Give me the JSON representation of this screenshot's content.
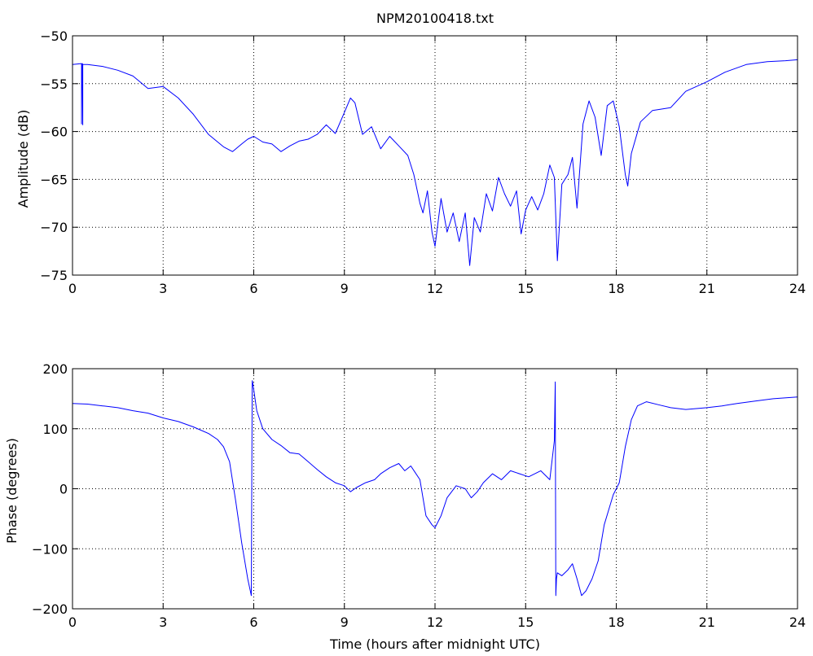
{
  "chart_data": [
    {
      "type": "line",
      "title": "NPM20100418.txt",
      "xlabel": "",
      "ylabel": "Amplitude (dB)",
      "xlim": [
        0,
        24
      ],
      "ylim": [
        -75,
        -50
      ],
      "xticks": [
        0,
        3,
        6,
        9,
        12,
        15,
        18,
        21,
        24
      ],
      "yticks": [
        -75,
        -70,
        -65,
        -60,
        -55,
        -50
      ],
      "xtick_labels": [
        "0",
        "3",
        "6",
        "9",
        "12",
        "15",
        "18",
        "21",
        "24"
      ],
      "ytick_labels": [
        "−75",
        "−70",
        "−65",
        "−60",
        "−55",
        "−50"
      ],
      "grid": true,
      "line_color": "#0000ff",
      "series": [
        {
          "x": [
            0,
            0.3,
            0.3,
            0.31,
            0.33,
            0.34,
            0.34,
            0.36,
            0.5,
            1,
            1.5,
            2,
            2.5,
            3,
            3.5,
            4,
            4.5,
            5,
            5.3,
            5.6,
            5.8,
            6,
            6.3,
            6.6,
            6.9,
            7.2,
            7.5,
            7.8,
            8.1,
            8.4,
            8.7,
            9.0,
            9.2,
            9.35,
            9.6,
            9.9,
            10.2,
            10.5,
            10.8,
            11.1,
            11.3,
            11.5,
            11.6,
            11.75,
            11.9,
            12.0,
            12.2,
            12.4,
            12.6,
            12.8,
            13.0,
            13.15,
            13.3,
            13.5,
            13.7,
            13.9,
            14.1,
            14.3,
            14.5,
            14.7,
            14.85,
            15.0,
            15.2,
            15.4,
            15.6,
            15.8,
            15.95,
            16.05,
            16.2,
            16.4,
            16.55,
            16.7,
            16.9,
            17.1,
            17.3,
            17.5,
            17.7,
            17.9,
            18.1,
            18.3,
            18.38,
            18.5,
            18.8,
            19.2,
            19.8,
            20.3,
            21,
            21.6,
            22.3,
            23,
            23.6,
            24
          ],
          "y": [
            -53,
            -52.9,
            -59.2,
            -53,
            -52.9,
            -59.3,
            -53,
            -53,
            -53,
            -53.2,
            -53.6,
            -54.2,
            -55.5,
            -55.3,
            -56.5,
            -58.2,
            -60.3,
            -61.6,
            -62.1,
            -61.3,
            -60.8,
            -60.5,
            -61.1,
            -61.3,
            -62.1,
            -61.5,
            -61,
            -60.8,
            -60.3,
            -59.3,
            -60.2,
            -58,
            -56.5,
            -57,
            -60.3,
            -59.5,
            -61.8,
            -60.5,
            -61.5,
            -62.5,
            -64.5,
            -67.5,
            -68.5,
            -66.2,
            -70.5,
            -72,
            -67,
            -70.5,
            -68.5,
            -71.5,
            -68.5,
            -74,
            -69,
            -70.5,
            -66.5,
            -68.3,
            -64.8,
            -66.5,
            -67.8,
            -66.2,
            -70.7,
            -68.2,
            -66.8,
            -68.2,
            -66.5,
            -63.5,
            -64.8,
            -73.5,
            -65.5,
            -64.5,
            -62.7,
            -68,
            -59.2,
            -56.8,
            -58.5,
            -62.5,
            -57.3,
            -56.8,
            -59.5,
            -64.5,
            -65.7,
            -62.3,
            -59,
            -57.8,
            -57.5,
            -55.8,
            -54.8,
            -53.8,
            -53,
            -52.7,
            -52.6,
            -52.5
          ]
        }
      ]
    },
    {
      "type": "line",
      "title": "",
      "xlabel": "Time (hours after midnight UTC)",
      "ylabel": "Phase (degrees)",
      "xlim": [
        0,
        24
      ],
      "ylim": [
        -200,
        200
      ],
      "xticks": [
        0,
        3,
        6,
        9,
        12,
        15,
        18,
        21,
        24
      ],
      "yticks": [
        -200,
        -100,
        0,
        100,
        200
      ],
      "xtick_labels": [
        "0",
        "3",
        "6",
        "9",
        "12",
        "15",
        "18",
        "21",
        "24"
      ],
      "ytick_labels": [
        "−200",
        "−100",
        "0",
        "100",
        "200"
      ],
      "grid": true,
      "line_color": "#0000ff",
      "series": [
        {
          "x": [
            0,
            0.5,
            1,
            1.5,
            2,
            2.5,
            3,
            3.5,
            4,
            4.5,
            4.8,
            5.0,
            5.2,
            5.4,
            5.6,
            5.8,
            5.92,
            5.95,
            5.97,
            6.1,
            6.3,
            6.6,
            6.9,
            7.2,
            7.5,
            7.8,
            8.1,
            8.4,
            8.7,
            9.0,
            9.2,
            9.4,
            9.7,
            10.0,
            10.2,
            10.5,
            10.8,
            11.0,
            11.2,
            11.5,
            11.7,
            11.9,
            12.0,
            12.2,
            12.4,
            12.7,
            13.0,
            13.2,
            13.4,
            13.6,
            13.9,
            14.2,
            14.5,
            14.8,
            15.1,
            15.5,
            15.8,
            15.95,
            15.98,
            16.0,
            16.02,
            16.05,
            16.2,
            16.4,
            16.55,
            16.7,
            16.85,
            17.0,
            17.2,
            17.4,
            17.6,
            17.9,
            18.1,
            18.3,
            18.5,
            18.7,
            19.0,
            19.4,
            19.8,
            20.3,
            21,
            21.5,
            22,
            22.6,
            23.2,
            24
          ],
          "y": [
            142,
            141,
            138,
            135,
            130,
            126,
            118,
            112,
            103,
            92,
            82,
            70,
            45,
            -20,
            -90,
            -150,
            -178,
            180,
            175,
            130,
            100,
            82,
            72,
            60,
            58,
            45,
            32,
            20,
            10,
            5,
            -5,
            2,
            10,
            15,
            25,
            35,
            42,
            30,
            38,
            15,
            -45,
            -60,
            -65,
            -45,
            -15,
            5,
            0,
            -15,
            -5,
            10,
            25,
            15,
            30,
            25,
            20,
            30,
            15,
            80,
            178,
            -178,
            -150,
            -140,
            -145,
            -135,
            -125,
            -150,
            -178,
            -170,
            -150,
            -120,
            -60,
            -10,
            10,
            70,
            115,
            138,
            145,
            140,
            135,
            132,
            135,
            138,
            142,
            146,
            150,
            153
          ]
        }
      ]
    }
  ]
}
